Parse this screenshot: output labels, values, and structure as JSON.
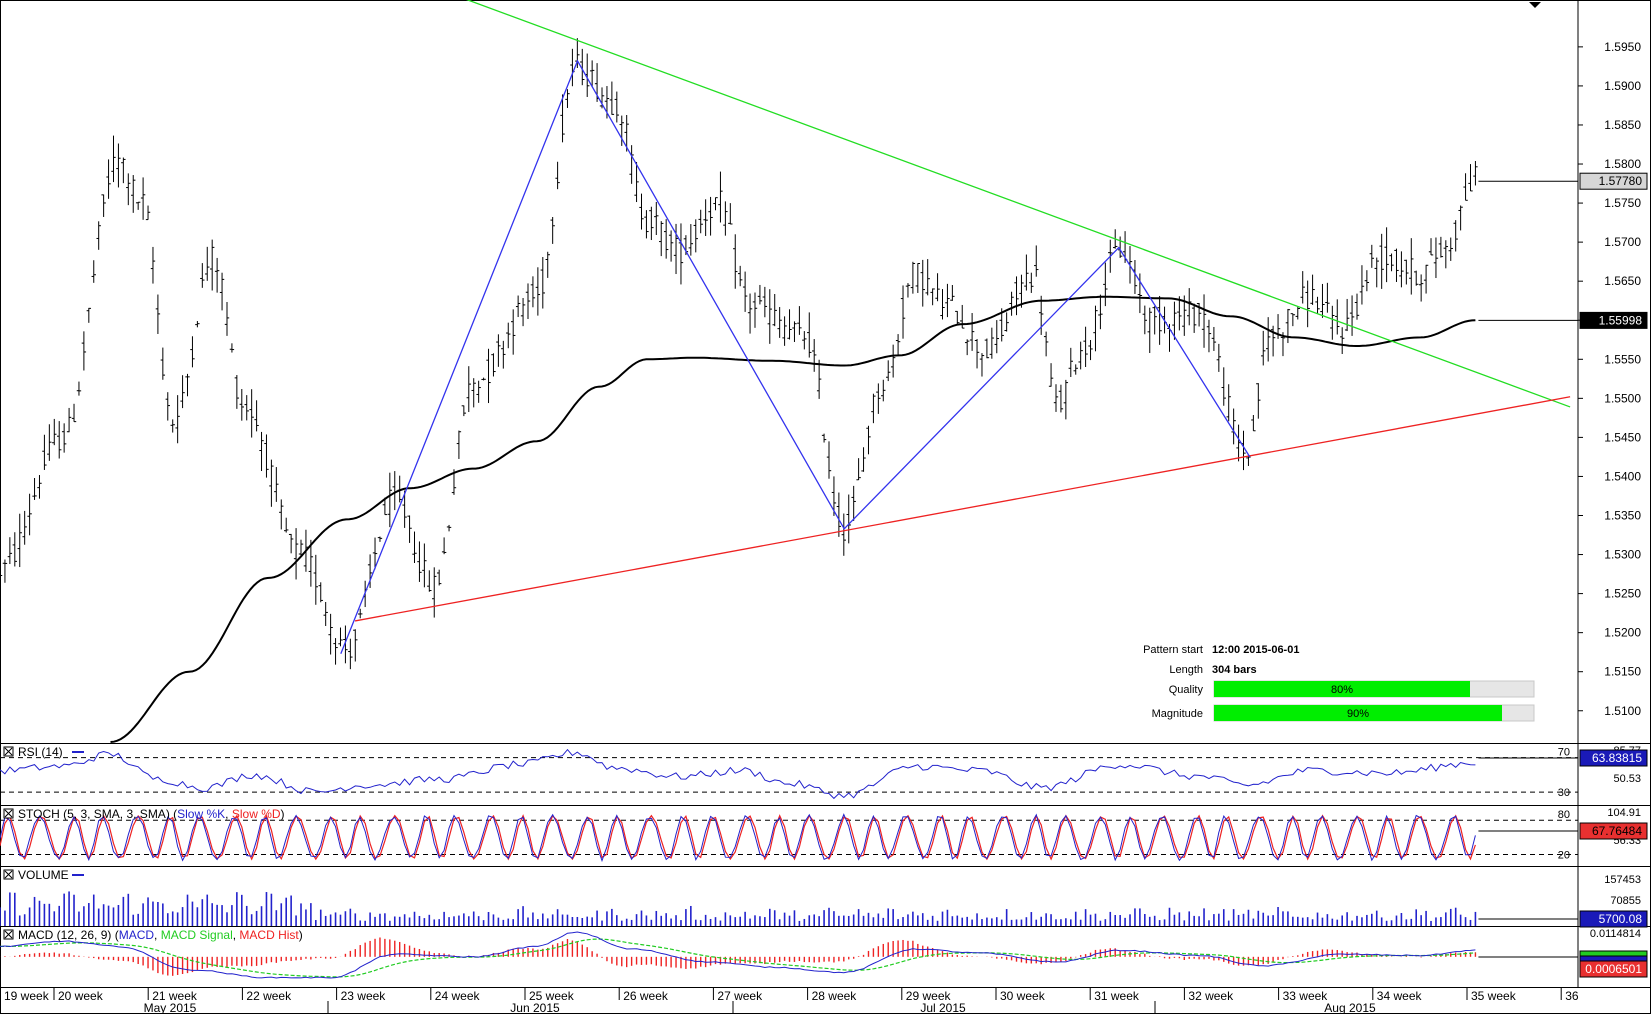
{
  "chart_data": [
    {
      "type": "candlestick",
      "series_name": "price",
      "ylim": [
        1.506,
        1.601
      ],
      "yticks": [
        "1.5950",
        "1.5900",
        "1.5850",
        "1.5800",
        "1.5750",
        "1.5700",
        "1.5650",
        "1.5600",
        "1.5550",
        "1.5500",
        "1.5450",
        "1.5400",
        "1.5350",
        "1.5300",
        "1.5250",
        "1.5200",
        "1.5150",
        "1.5100"
      ],
      "price_markers": [
        {
          "label": "1.57780",
          "value": 1.5778,
          "style": "gray"
        },
        {
          "label": "1.55998",
          "value": 1.55998,
          "style": "black"
        }
      ],
      "key_points": [
        {
          "t": 0.0,
          "v": 1.528
        },
        {
          "t": 0.04,
          "v": 1.545
        },
        {
          "t": 0.075,
          "v": 1.5805
        },
        {
          "t": 0.09,
          "v": 1.575
        },
        {
          "t": 0.11,
          "v": 1.547
        },
        {
          "t": 0.135,
          "v": 1.568
        },
        {
          "t": 0.155,
          "v": 1.549
        },
        {
          "t": 0.19,
          "v": 1.53
        },
        {
          "t": 0.22,
          "v": 1.518
        },
        {
          "t": 0.25,
          "v": 1.537
        },
        {
          "t": 0.275,
          "v": 1.526
        },
        {
          "t": 0.3,
          "v": 1.552
        },
        {
          "t": 0.34,
          "v": 1.563
        },
        {
          "t": 0.365,
          "v": 1.5925
        },
        {
          "t": 0.39,
          "v": 1.588
        },
        {
          "t": 0.41,
          "v": 1.573
        },
        {
          "t": 0.43,
          "v": 1.569
        },
        {
          "t": 0.455,
          "v": 1.575
        },
        {
          "t": 0.475,
          "v": 1.562
        },
        {
          "t": 0.51,
          "v": 1.558
        },
        {
          "t": 0.535,
          "v": 1.5335
        },
        {
          "t": 0.56,
          "v": 1.552
        },
        {
          "t": 0.58,
          "v": 1.566
        },
        {
          "t": 0.6,
          "v": 1.562
        },
        {
          "t": 0.625,
          "v": 1.556
        },
        {
          "t": 0.655,
          "v": 1.566
        },
        {
          "t": 0.67,
          "v": 1.549
        },
        {
          "t": 0.685,
          "v": 1.556
        },
        {
          "t": 0.71,
          "v": 1.569
        },
        {
          "t": 0.73,
          "v": 1.56
        },
        {
          "t": 0.76,
          "v": 1.561
        },
        {
          "t": 0.79,
          "v": 1.543
        },
        {
          "t": 0.805,
          "v": 1.558
        },
        {
          "t": 0.83,
          "v": 1.563
        },
        {
          "t": 0.85,
          "v": 1.559
        },
        {
          "t": 0.875,
          "v": 1.568
        },
        {
          "t": 0.9,
          "v": 1.566
        },
        {
          "t": 0.915,
          "v": 1.569
        },
        {
          "t": 0.935,
          "v": 1.578
        }
      ],
      "ma_curve": [
        {
          "t": 0.07,
          "v": 1.506
        },
        {
          "t": 0.12,
          "v": 1.515
        },
        {
          "t": 0.17,
          "v": 1.527
        },
        {
          "t": 0.22,
          "v": 1.5345
        },
        {
          "t": 0.26,
          "v": 1.5385
        },
        {
          "t": 0.3,
          "v": 1.541
        },
        {
          "t": 0.34,
          "v": 1.5445
        },
        {
          "t": 0.38,
          "v": 1.5515
        },
        {
          "t": 0.41,
          "v": 1.555
        },
        {
          "t": 0.44,
          "v": 1.5552
        },
        {
          "t": 0.49,
          "v": 1.5548
        },
        {
          "t": 0.535,
          "v": 1.5542
        },
        {
          "t": 0.57,
          "v": 1.5555
        },
        {
          "t": 0.61,
          "v": 1.5595
        },
        {
          "t": 0.66,
          "v": 1.5625
        },
        {
          "t": 0.7,
          "v": 1.563
        },
        {
          "t": 0.74,
          "v": 1.5628
        },
        {
          "t": 0.78,
          "v": 1.5605
        },
        {
          "t": 0.82,
          "v": 1.5578
        },
        {
          "t": 0.86,
          "v": 1.5567
        },
        {
          "t": 0.9,
          "v": 1.5578
        },
        {
          "t": 0.935,
          "v": 1.56
        }
      ],
      "pattern_lines": {
        "resistance": {
          "color": "#22dd22",
          "points": [
            {
              "t": 0.267,
              "v": 1.6032
            },
            {
              "t": 0.995,
              "v": 1.5489
            }
          ]
        },
        "support": {
          "color": "#ee2222",
          "points": [
            {
              "t": 0.225,
              "v": 1.5215
            },
            {
              "t": 0.995,
              "v": 1.5502
            }
          ]
        },
        "zigzag": {
          "color": "#3333ee",
          "points": [
            {
              "t": 0.216,
              "v": 1.5173
            },
            {
              "t": 0.366,
              "v": 1.5932
            },
            {
              "t": 0.535,
              "v": 1.5333
            },
            {
              "t": 0.709,
              "v": 1.5693
            },
            {
              "t": 0.792,
              "v": 1.5425
            }
          ]
        }
      },
      "pattern_info": {
        "start_label": "Pattern start",
        "start_value": "12:00 2015-06-01",
        "length_label": "Length",
        "length_value": "304 bars",
        "quality_label": "Quality",
        "quality_value": "80%",
        "quality_fraction": 0.8,
        "magnitude_label": "Magnitude",
        "magnitude_value": "90%",
        "magnitude_fraction": 0.9,
        "bar_color": "#00ee00"
      }
    },
    {
      "type": "line",
      "title": "RSI (14)",
      "ylim": [
        15,
        85.77
      ],
      "axis_labels": [
        "85.77",
        "70",
        "50.53",
        "30"
      ],
      "value_label": "63.83815",
      "series_color": "#2222cc",
      "levels": [
        70,
        30
      ],
      "key_points": [
        {
          "t": 0.0,
          "v": 55
        },
        {
          "t": 0.04,
          "v": 60
        },
        {
          "t": 0.07,
          "v": 74
        },
        {
          "t": 0.1,
          "v": 45
        },
        {
          "t": 0.13,
          "v": 35
        },
        {
          "t": 0.16,
          "v": 50
        },
        {
          "t": 0.2,
          "v": 30
        },
        {
          "t": 0.23,
          "v": 38
        },
        {
          "t": 0.28,
          "v": 45
        },
        {
          "t": 0.33,
          "v": 62
        },
        {
          "t": 0.365,
          "v": 76
        },
        {
          "t": 0.39,
          "v": 58
        },
        {
          "t": 0.43,
          "v": 48
        },
        {
          "t": 0.47,
          "v": 55
        },
        {
          "t": 0.5,
          "v": 40
        },
        {
          "t": 0.535,
          "v": 26
        },
        {
          "t": 0.58,
          "v": 60
        },
        {
          "t": 0.62,
          "v": 55
        },
        {
          "t": 0.66,
          "v": 35
        },
        {
          "t": 0.71,
          "v": 62
        },
        {
          "t": 0.76,
          "v": 48
        },
        {
          "t": 0.79,
          "v": 38
        },
        {
          "t": 0.83,
          "v": 55
        },
        {
          "t": 0.88,
          "v": 52
        },
        {
          "t": 0.935,
          "v": 64
        }
      ]
    },
    {
      "type": "line",
      "title": "STOCH (5, 3, SMA, 3, SMA)",
      "legend": [
        {
          "label": "Slow %K",
          "color": "#2222cc"
        },
        {
          "label": "Slow %D",
          "color": "#ee2222"
        }
      ],
      "ylim": [
        0,
        104.91
      ],
      "axis_labels": [
        "104.91",
        "80",
        "56.33",
        "20"
      ],
      "value_label": "67.76484",
      "levels": [
        80,
        20
      ],
      "cycles": 46
    },
    {
      "type": "bar",
      "title": "VOLUME",
      "series_color": "#2222cc",
      "ylim": [
        0,
        157453
      ],
      "axis_labels": [
        "157453",
        "70855"
      ],
      "value_label": "5700.08",
      "bar_count": 300
    },
    {
      "type": "line",
      "title": "MACD (12, 26, 9)",
      "legend": [
        {
          "label": "MACD",
          "color": "#2222cc"
        },
        {
          "label": "MACD Signal",
          "color": "#22cc22"
        },
        {
          "label": "MACD Hist",
          "color": "#ee2222"
        }
      ],
      "ylim": [
        -0.012,
        0.0114814
      ],
      "axis_labels": [
        "0.0114814"
      ],
      "value_label": "0.0006501",
      "key_points": [
        {
          "t": 0.0,
          "v": 0.004
        },
        {
          "t": 0.04,
          "v": 0.006
        },
        {
          "t": 0.075,
          "v": 0.004
        },
        {
          "t": 0.12,
          "v": -0.005
        },
        {
          "t": 0.17,
          "v": -0.008
        },
        {
          "t": 0.21,
          "v": -0.008
        },
        {
          "t": 0.25,
          "v": 0.001
        },
        {
          "t": 0.3,
          "v": 0.0
        },
        {
          "t": 0.34,
          "v": 0.004
        },
        {
          "t": 0.365,
          "v": 0.0095
        },
        {
          "t": 0.4,
          "v": 0.003
        },
        {
          "t": 0.45,
          "v": -0.002
        },
        {
          "t": 0.49,
          "v": -0.004
        },
        {
          "t": 0.535,
          "v": -0.006
        },
        {
          "t": 0.58,
          "v": 0.003
        },
        {
          "t": 0.62,
          "v": 0.0015
        },
        {
          "t": 0.67,
          "v": -0.002
        },
        {
          "t": 0.71,
          "v": 0.0025
        },
        {
          "t": 0.76,
          "v": 0.0005
        },
        {
          "t": 0.8,
          "v": -0.0035
        },
        {
          "t": 0.85,
          "v": 0.001
        },
        {
          "t": 0.9,
          "v": 0.0005
        },
        {
          "t": 0.935,
          "v": 0.0025
        }
      ]
    },
    {
      "type": "time_axis",
      "week_labels": [
        "19 week",
        "20 week",
        "21 week",
        "22 week",
        "23 week",
        "24 week",
        "25 week",
        "26 week",
        "27 week",
        "28 week",
        "29 week",
        "30 week",
        "31 week",
        "32 week",
        "33 week",
        "34 week",
        "35 week",
        "36"
      ],
      "month_labels": [
        "May 2015",
        "Jun 2015",
        "Jul 2015",
        "Aug 2015"
      ]
    }
  ]
}
